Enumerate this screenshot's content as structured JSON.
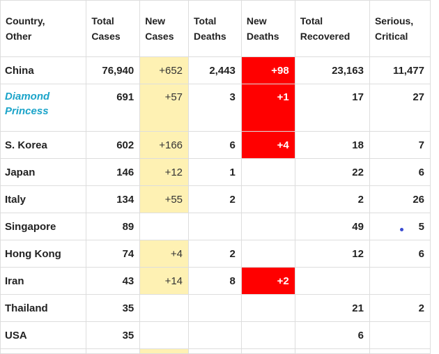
{
  "headers": {
    "country": "Country,\nOther",
    "total_cases": "Total\nCases",
    "new_cases": "New\nCases",
    "total_deaths": "Total\nDeaths",
    "new_deaths": "New\nDeaths",
    "total_recovered": "Total\nRecovered",
    "serious_critical": "Serious,\nCritical"
  },
  "rows": [
    {
      "country": "China",
      "total_cases": "76,940",
      "new_cases": "+652",
      "total_deaths": "2,443",
      "new_deaths": "+98",
      "total_recovered": "23,163",
      "serious_critical": "11,477"
    },
    {
      "country": "Diamond Princess",
      "total_cases": "691",
      "new_cases": "+57",
      "total_deaths": "3",
      "new_deaths": "+1",
      "total_recovered": "17",
      "serious_critical": "27"
    },
    {
      "country": "S. Korea",
      "total_cases": "602",
      "new_cases": "+166",
      "total_deaths": "6",
      "new_deaths": "+4",
      "total_recovered": "18",
      "serious_critical": "7"
    },
    {
      "country": "Japan",
      "total_cases": "146",
      "new_cases": "+12",
      "total_deaths": "1",
      "new_deaths": "",
      "total_recovered": "22",
      "serious_critical": "6"
    },
    {
      "country": "Italy",
      "total_cases": "134",
      "new_cases": "+55",
      "total_deaths": "2",
      "new_deaths": "",
      "total_recovered": "2",
      "serious_critical": "26"
    },
    {
      "country": "Singapore",
      "total_cases": "89",
      "new_cases": "",
      "total_deaths": "",
      "new_deaths": "",
      "total_recovered": "49",
      "serious_critical": "5"
    },
    {
      "country": "Hong Kong",
      "total_cases": "74",
      "new_cases": "+4",
      "total_deaths": "2",
      "new_deaths": "",
      "total_recovered": "12",
      "serious_critical": "6"
    },
    {
      "country": "Iran",
      "total_cases": "43",
      "new_cases": "+14",
      "total_deaths": "8",
      "new_deaths": "+2",
      "total_recovered": "",
      "serious_critical": ""
    },
    {
      "country": "Thailand",
      "total_cases": "35",
      "new_cases": "",
      "total_deaths": "",
      "new_deaths": "",
      "total_recovered": "21",
      "serious_critical": "2"
    },
    {
      "country": "USA",
      "total_cases": "35",
      "new_cases": "",
      "total_deaths": "",
      "new_deaths": "",
      "total_recovered": "6",
      "serious_critical": ""
    }
  ],
  "colors": {
    "new_cases_highlight": "#fef1b3",
    "new_deaths_highlight": "#ff0000",
    "ship_link": "#1ba4c9",
    "grid_line": "#dddddd"
  }
}
